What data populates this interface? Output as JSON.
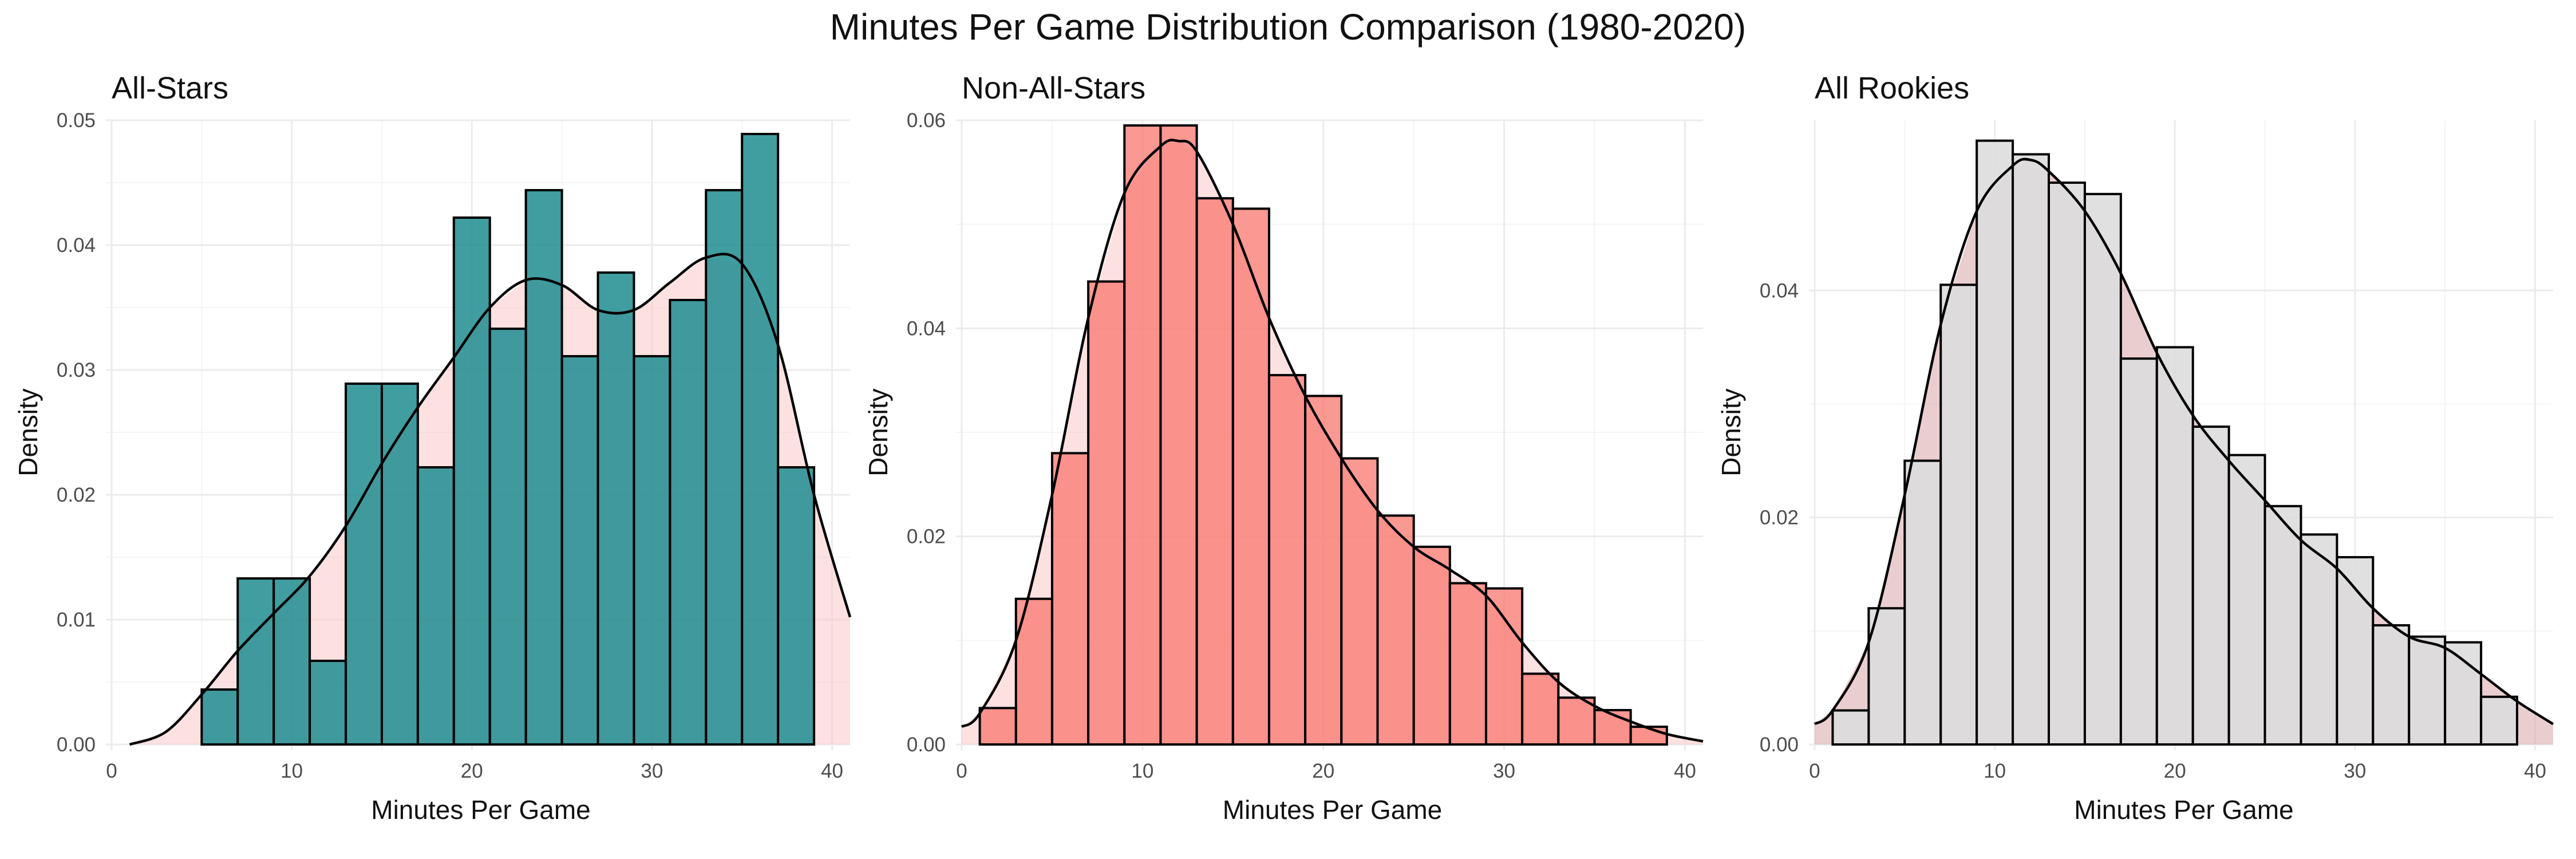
{
  "title": "Minutes Per Game Distribution Comparison (1980-2020)",
  "chart_data": [
    {
      "type": "bar",
      "subtitle": "All-Stars",
      "xlabel": "Minutes Per Game",
      "ylabel": "Density",
      "xlim": [
        0,
        41
      ],
      "ylim": [
        0,
        0.05
      ],
      "xticks": [
        0,
        10,
        20,
        30,
        40
      ],
      "yticks": [
        0.0,
        0.01,
        0.02,
        0.03,
        0.04,
        0.05
      ],
      "bin_width": 2,
      "bin_starts": [
        5,
        7,
        9,
        11,
        13,
        15,
        17,
        19,
        21,
        23,
        25,
        27,
        29,
        31,
        33,
        35,
        37
      ],
      "values": [
        0.0044,
        0.0133,
        0.0133,
        0.0067,
        0.0289,
        0.0289,
        0.0222,
        0.0422,
        0.0333,
        0.0444,
        0.0311,
        0.0378,
        0.0311,
        0.0356,
        0.0444,
        0.0489,
        0.0222
      ],
      "bar_color": "#1f8c8f",
      "bar_opacity": 0.85,
      "density_fill": "#fcc9c9",
      "density_fill_opacity": 0.55,
      "density": {
        "x": [
          1,
          3,
          5,
          7,
          9,
          11,
          13,
          15,
          17,
          19,
          21,
          23,
          25,
          27,
          29,
          31,
          33,
          35,
          37,
          39,
          41
        ],
        "y": [
          0.0,
          0.001,
          0.004,
          0.0075,
          0.0105,
          0.0135,
          0.0175,
          0.0225,
          0.027,
          0.031,
          0.035,
          0.0372,
          0.0368,
          0.0348,
          0.0348,
          0.037,
          0.039,
          0.0385,
          0.032,
          0.02,
          0.0102
        ]
      }
    },
    {
      "type": "bar",
      "subtitle": "Non-All-Stars",
      "xlabel": "Minutes Per Game",
      "ylabel": "Density",
      "xlim": [
        0,
        41
      ],
      "ylim": [
        0,
        0.06
      ],
      "xticks": [
        0,
        10,
        20,
        30,
        40
      ],
      "yticks": [
        0.0,
        0.02,
        0.04,
        0.06
      ],
      "bin_width": 2,
      "bin_starts": [
        1,
        3,
        5,
        7,
        9,
        11,
        13,
        15,
        17,
        19,
        21,
        23,
        25,
        27,
        29,
        31,
        33,
        35,
        37
      ],
      "values": [
        0.0035,
        0.014,
        0.028,
        0.0445,
        0.0595,
        0.0595,
        0.0525,
        0.0515,
        0.0355,
        0.0335,
        0.0275,
        0.022,
        0.019,
        0.0155,
        0.015,
        0.0068,
        0.0045,
        0.0033,
        0.0017
      ],
      "bar_color": "#f8766d",
      "bar_opacity": 0.75,
      "density_fill": "#fcc9c9",
      "density_fill_opacity": 0.55,
      "density": {
        "x": [
          0,
          1,
          3,
          5,
          7,
          9,
          11,
          12,
          13,
          15,
          17,
          19,
          21,
          23,
          25,
          27,
          29,
          31,
          33,
          35,
          37,
          39,
          41
        ],
        "y": [
          0.0017,
          0.003,
          0.01,
          0.024,
          0.041,
          0.053,
          0.0575,
          0.058,
          0.057,
          0.05,
          0.041,
          0.0335,
          0.0275,
          0.0225,
          0.019,
          0.0168,
          0.0143,
          0.0098,
          0.006,
          0.0037,
          0.0022,
          0.001,
          0.0003
        ]
      }
    },
    {
      "type": "bar",
      "subtitle": "All Rookies",
      "xlabel": "Minutes Per Game",
      "ylabel": "Density",
      "xlim": [
        0,
        41
      ],
      "ylim": [
        0,
        0.055
      ],
      "xticks": [
        0,
        10,
        20,
        30,
        40
      ],
      "yticks": [
        0.0,
        0.02,
        0.04
      ],
      "bin_width": 2,
      "bin_starts": [
        1,
        3,
        5,
        7,
        9,
        11,
        13,
        15,
        17,
        19,
        21,
        23,
        25,
        27,
        29,
        31,
        33,
        35,
        37
      ],
      "values": [
        0.003,
        0.012,
        0.025,
        0.0405,
        0.0532,
        0.052,
        0.0495,
        0.0485,
        0.034,
        0.035,
        0.028,
        0.0255,
        0.021,
        0.0185,
        0.0165,
        0.0105,
        0.0095,
        0.009,
        0.0042
      ],
      "bar_color": "#dddddd",
      "bar_opacity": 0.9,
      "density_fill": "#d9a6a8",
      "density_fill_opacity": 0.55,
      "density": {
        "x": [
          0,
          1,
          3,
          5,
          7,
          9,
          11,
          12,
          13,
          15,
          17,
          19,
          21,
          23,
          25,
          27,
          29,
          31,
          33,
          35,
          37,
          39,
          41
        ],
        "y": [
          0.0018,
          0.003,
          0.009,
          0.022,
          0.037,
          0.047,
          0.051,
          0.0515,
          0.0505,
          0.047,
          0.0415,
          0.0345,
          0.029,
          0.025,
          0.0215,
          0.018,
          0.0155,
          0.012,
          0.0095,
          0.0085,
          0.0062,
          0.0038,
          0.0018
        ]
      }
    }
  ]
}
